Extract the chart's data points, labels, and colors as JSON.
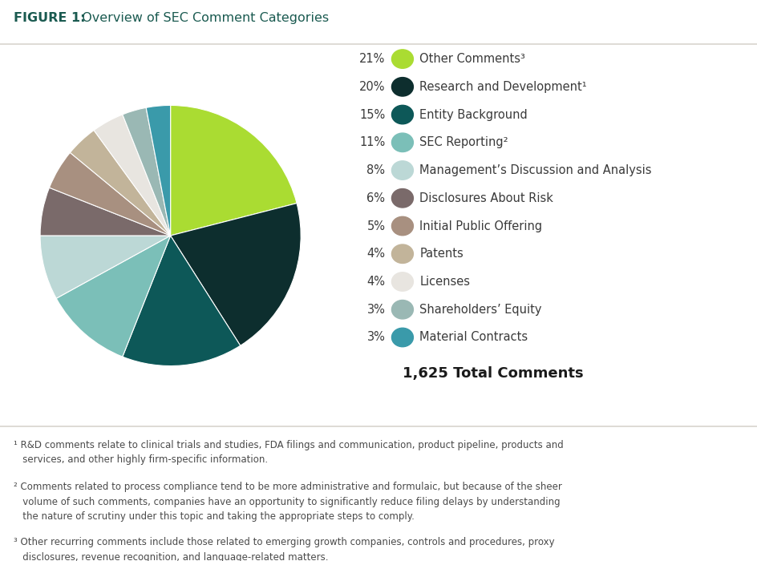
{
  "title_bold": "FIGURE 1:",
  "title_rest": "  Overview of SEC Comment Categories",
  "total_label": "1,625 Total Comments",
  "categories": [
    "Other Comments³",
    "Research and Development¹",
    "Entity Background",
    "SEC Reporting²",
    "Management’s Discussion and Analysis",
    "Disclosures About Risk",
    "Initial Public Offering",
    "Patents",
    "Licenses",
    "Shareholders’ Equity",
    "Material Contracts"
  ],
  "percentages": [
    21,
    20,
    15,
    11,
    8,
    6,
    5,
    4,
    4,
    3,
    3
  ],
  "colors": [
    "#aadc32",
    "#0d2e2e",
    "#0d5858",
    "#7bbfb8",
    "#bcd8d6",
    "#7a6a6a",
    "#a89080",
    "#c2b49a",
    "#e8e5e0",
    "#9ab8b4",
    "#3a9aaa"
  ],
  "footnotes": [
    "¹ R&D comments relate to clinical trials and studies, FDA filings and communication, product pipeline, products and\n   services, and other highly firm-specific information.",
    "² Comments related to process compliance tend to be more administrative and formulaic, but because of the sheer\n   volume of such comments, companies have an opportunity to significantly reduce filing delays by understanding\n   the nature of scrutiny under this topic and taking the appropriate steps to comply.",
    "³ Other recurring comments include those related to emerging growth companies, controls and procedures, proxy\n   disclosures, revenue recognition, and language-related matters."
  ],
  "bg_color": "#ffffff",
  "text_color": "#3a3a3a",
  "title_bold_color": "#1a5a50",
  "title_rest_color": "#3a3a3a",
  "percent_color": "#3a3a3a",
  "total_color": "#1a1a1a",
  "line_color": "#d8d4ce",
  "footnote_color": "#4a4a4a"
}
